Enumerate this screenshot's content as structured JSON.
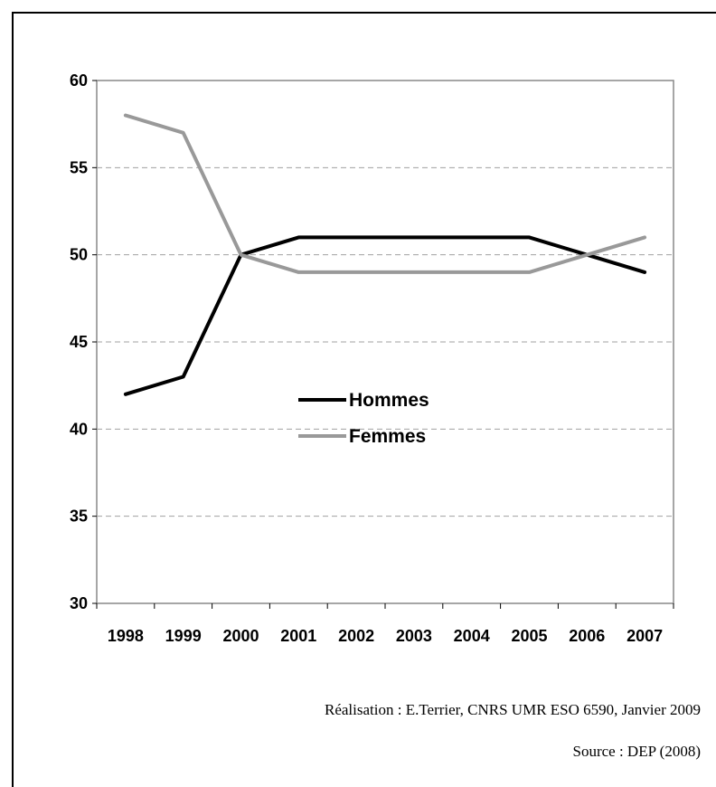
{
  "chart_data": {
    "type": "line",
    "categories": [
      "1998",
      "1999",
      "2000",
      "2001",
      "2002",
      "2003",
      "2004",
      "2005",
      "2006",
      "2007"
    ],
    "series": [
      {
        "name": "Hommes",
        "values": [
          42,
          43,
          50,
          51,
          51,
          51,
          51,
          51,
          50,
          49
        ],
        "color": "#000000"
      },
      {
        "name": "Femmes",
        "values": [
          58,
          57,
          50,
          49,
          49,
          49,
          49,
          49,
          50,
          51
        ],
        "color": "#999999"
      }
    ],
    "yticks": [
      "30",
      "35",
      "40",
      "45",
      "50",
      "55",
      "60"
    ],
    "ylim": [
      30,
      60
    ],
    "ystep": 5,
    "grid": "horizontal dashed",
    "legend_position": "center"
  },
  "credits": {
    "realisation": "Réalisation : E.Terrier, CNRS UMR ESO 6590, Janvier 2009",
    "source": "Source : DEP (2008)"
  }
}
